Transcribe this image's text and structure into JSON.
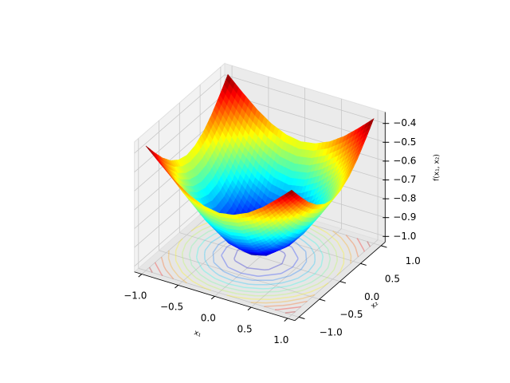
{
  "chart_data": {
    "type": "surface",
    "x_label": "x₁",
    "y_label": "x₂",
    "z_label": "f(x₁, x₂)",
    "x": [
      -1,
      -0.8,
      -0.6,
      -0.4,
      -0.2,
      0,
      0.2,
      0.4,
      0.6,
      0.8,
      1
    ],
    "y": [
      -1,
      -0.8,
      -0.6,
      -0.4,
      -0.2,
      0,
      0.2,
      0.4,
      0.6,
      0.8,
      1
    ],
    "z": [
      [
        -0.368,
        -0.44,
        -0.507,
        -0.56,
        -0.594,
        -0.607,
        -0.594,
        -0.56,
        -0.507,
        -0.44,
        -0.368
      ],
      [
        -0.44,
        -0.527,
        -0.607,
        -0.67,
        -0.712,
        -0.726,
        -0.712,
        -0.67,
        -0.607,
        -0.527,
        -0.44
      ],
      [
        -0.507,
        -0.607,
        -0.698,
        -0.771,
        -0.819,
        -0.835,
        -0.819,
        -0.771,
        -0.698,
        -0.607,
        -0.507
      ],
      [
        -0.56,
        -0.67,
        -0.771,
        -0.852,
        -0.905,
        -0.923,
        -0.905,
        -0.852,
        -0.771,
        -0.67,
        -0.56
      ],
      [
        -0.594,
        -0.712,
        -0.819,
        -0.905,
        -0.961,
        -0.98,
        -0.961,
        -0.905,
        -0.819,
        -0.712,
        -0.594
      ],
      [
        -0.607,
        -0.726,
        -0.835,
        -0.923,
        -0.98,
        -1,
        -0.98,
        -0.923,
        -0.835,
        -0.726,
        -0.607
      ],
      [
        -0.594,
        -0.712,
        -0.819,
        -0.905,
        -0.961,
        -0.98,
        -0.961,
        -0.905,
        -0.819,
        -0.712,
        -0.594
      ],
      [
        -0.56,
        -0.67,
        -0.771,
        -0.852,
        -0.905,
        -0.923,
        -0.905,
        -0.852,
        -0.771,
        -0.67,
        -0.56
      ],
      [
        -0.507,
        -0.607,
        -0.698,
        -0.771,
        -0.819,
        -0.835,
        -0.819,
        -0.771,
        -0.698,
        -0.607,
        -0.507
      ],
      [
        -0.44,
        -0.527,
        -0.607,
        -0.67,
        -0.712,
        -0.726,
        -0.712,
        -0.67,
        -0.607,
        -0.527,
        -0.44
      ],
      [
        -0.368,
        -0.44,
        -0.507,
        -0.56,
        -0.594,
        -0.607,
        -0.594,
        -0.56,
        -0.507,
        -0.44,
        -0.368
      ]
    ],
    "colormap": "jet",
    "contour_levels": [
      -0.95,
      -0.9,
      -0.85,
      -0.8,
      -0.75,
      -0.7,
      -0.65,
      -0.6,
      -0.55,
      -0.5,
      -0.45,
      -0.4
    ],
    "contour_alpha": 0.3,
    "xlim": [
      -1.1,
      1.1
    ],
    "ylim": [
      -1.1,
      1.1
    ],
    "zlim": [
      -1.03,
      -0.34
    ],
    "xticks": [
      {
        "value": -1,
        "label": "−1.0"
      },
      {
        "value": -0.5,
        "label": "−0.5"
      },
      {
        "value": 0,
        "label": "0.0"
      },
      {
        "value": 0.5,
        "label": "0.5"
      },
      {
        "value": 1,
        "label": "1.0"
      }
    ],
    "yticks": [
      {
        "value": -1,
        "label": "−1.0"
      },
      {
        "value": -0.5,
        "label": "−0.5"
      },
      {
        "value": 0,
        "label": "0.0"
      },
      {
        "value": 0.5,
        "label": "0.5"
      },
      {
        "value": 1,
        "label": "1.0"
      }
    ],
    "zticks": [
      {
        "value": -0.4,
        "label": "−0.4"
      },
      {
        "value": -0.5,
        "label": "−0.5"
      },
      {
        "value": -0.6,
        "label": "−0.6"
      },
      {
        "value": -0.7,
        "label": "−0.7"
      },
      {
        "value": -0.8,
        "label": "−0.8"
      },
      {
        "value": -0.9,
        "label": "−0.9"
      },
      {
        "value": -1,
        "label": "−1.0"
      }
    ],
    "grid": true
  }
}
